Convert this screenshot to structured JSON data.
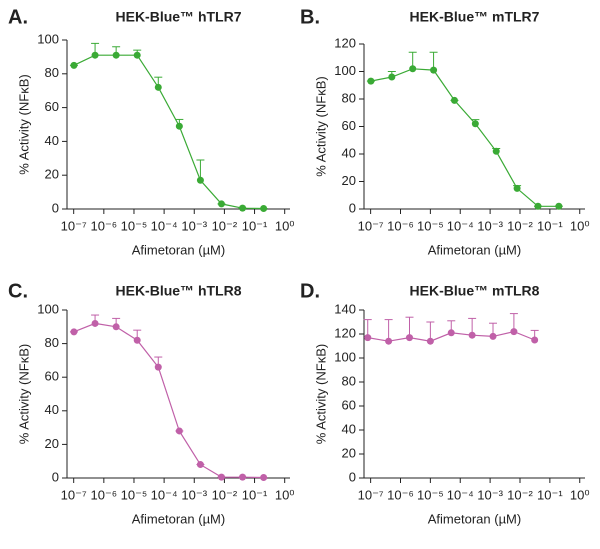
{
  "chart_data": [
    {
      "type": "line",
      "panel_label": "A.",
      "title": "HEK-Blue™ hTLR7",
      "xlabel": "Afimetoran (µM)",
      "ylabel": "% Activity (NFκB)",
      "log_x": true,
      "x": [
        1.02e-07,
        5.12e-07,
        2.56e-06,
        1.28e-05,
        6.4e-05,
        0.00032,
        0.0016,
        0.008,
        0.04,
        0.2
      ],
      "series": [
        {
          "color": "#3aaa35",
          "values": [
            85,
            91,
            91,
            91,
            72,
            49,
            17,
            3,
            0.5,
            0.3
          ],
          "errors": [
            0,
            7,
            5,
            3,
            6,
            4,
            12,
            0,
            0,
            0
          ]
        }
      ],
      "xlim": [
        6e-08,
        1.5
      ],
      "ylim": [
        0,
        100
      ],
      "yticks": [
        0,
        20,
        40,
        60,
        80,
        100
      ],
      "xticks": [
        {
          "value": 1e-07,
          "label": "10⁻⁷"
        },
        {
          "value": 1e-06,
          "label": "10⁻⁶"
        },
        {
          "value": 1e-05,
          "label": "10⁻⁵"
        },
        {
          "value": 0.0001,
          "label": "10⁻⁴"
        },
        {
          "value": 0.001,
          "label": "10⁻³"
        },
        {
          "value": 0.01,
          "label": "10⁻²"
        },
        {
          "value": 0.1,
          "label": "10⁻¹"
        },
        {
          "value": 1,
          "label": "10⁰"
        }
      ]
    },
    {
      "type": "line",
      "panel_label": "B.",
      "title": "HEK-Blue™ mTLR7",
      "xlabel": "Afimetoran (µM)",
      "ylabel": "% Activity (NFκB)",
      "log_x": true,
      "x": [
        1.02e-07,
        5.12e-07,
        2.56e-06,
        1.28e-05,
        6.4e-05,
        0.00032,
        0.0016,
        0.008,
        0.04,
        0.2
      ],
      "series": [
        {
          "color": "#3aaa35",
          "values": [
            93,
            96,
            102,
            101,
            79,
            62,
            42,
            15,
            2,
            2
          ],
          "errors": [
            0,
            4,
            12,
            13,
            0,
            3,
            2,
            2,
            0,
            0
          ]
        }
      ],
      "xlim": [
        6e-08,
        1.5
      ],
      "ylim": [
        0,
        120
      ],
      "yticks": [
        0,
        20,
        40,
        60,
        80,
        100,
        120
      ],
      "xticks": [
        {
          "value": 1e-07,
          "label": "10⁻⁷"
        },
        {
          "value": 1e-06,
          "label": "10⁻⁶"
        },
        {
          "value": 1e-05,
          "label": "10⁻⁵"
        },
        {
          "value": 0.0001,
          "label": "10⁻⁴"
        },
        {
          "value": 0.001,
          "label": "10⁻³"
        },
        {
          "value": 0.01,
          "label": "10⁻²"
        },
        {
          "value": 0.1,
          "label": "10⁻¹"
        },
        {
          "value": 1,
          "label": "10⁰"
        }
      ]
    },
    {
      "type": "line",
      "panel_label": "C.",
      "title": "HEK-Blue™ hTLR8",
      "xlabel": "Afimetoran (µM)",
      "ylabel": "% Activity (NFκB)",
      "log_x": true,
      "x": [
        1.02e-07,
        5.12e-07,
        2.56e-06,
        1.28e-05,
        6.4e-05,
        0.00032,
        0.0016,
        0.008,
        0.04,
        0.2
      ],
      "series": [
        {
          "color": "#c060a8",
          "values": [
            87,
            92,
            90,
            82,
            66,
            28,
            8,
            0.5,
            0.5,
            0.3
          ],
          "errors": [
            0,
            5,
            5,
            6,
            6,
            0,
            0,
            0,
            0,
            0
          ]
        }
      ],
      "xlim": [
        6e-08,
        1.5
      ],
      "ylim": [
        0,
        100
      ],
      "yticks": [
        0,
        20,
        40,
        60,
        80,
        100
      ],
      "xticks": [
        {
          "value": 1e-07,
          "label": "10⁻⁷"
        },
        {
          "value": 1e-06,
          "label": "10⁻⁶"
        },
        {
          "value": 1e-05,
          "label": "10⁻⁵"
        },
        {
          "value": 0.0001,
          "label": "10⁻⁴"
        },
        {
          "value": 0.001,
          "label": "10⁻³"
        },
        {
          "value": 0.01,
          "label": "10⁻²"
        },
        {
          "value": 0.1,
          "label": "10⁻¹"
        },
        {
          "value": 1,
          "label": "10⁰"
        }
      ]
    },
    {
      "type": "line",
      "panel_label": "D.",
      "title": "HEK-Blue™ mTLR8",
      "xlabel": "Afimetoran (µM)",
      "ylabel": "% Activity (NFκB)",
      "log_x": true,
      "x": [
        8e-08,
        4e-07,
        2e-06,
        1e-05,
        5e-05,
        0.00025,
        0.00125,
        0.00625,
        0.031
      ],
      "series": [
        {
          "color": "#c060a8",
          "values": [
            117,
            114,
            117,
            114,
            121,
            119,
            118,
            122,
            115
          ],
          "errors": [
            15,
            18,
            17,
            16,
            10,
            14,
            11,
            15,
            8
          ]
        }
      ],
      "xlim": [
        6e-08,
        1.5
      ],
      "ylim": [
        0,
        140
      ],
      "yticks": [
        0,
        20,
        40,
        60,
        80,
        100,
        120,
        140
      ],
      "xticks": [
        {
          "value": 1e-07,
          "label": "10⁻⁷"
        },
        {
          "value": 1e-06,
          "label": "10⁻⁶"
        },
        {
          "value": 1e-05,
          "label": "10⁻⁵"
        },
        {
          "value": 0.0001,
          "label": "10⁻⁴"
        },
        {
          "value": 0.001,
          "label": "10⁻³"
        },
        {
          "value": 0.01,
          "label": "10⁻²"
        },
        {
          "value": 0.1,
          "label": "10⁻¹"
        },
        {
          "value": 1,
          "label": "10⁰"
        }
      ]
    }
  ]
}
